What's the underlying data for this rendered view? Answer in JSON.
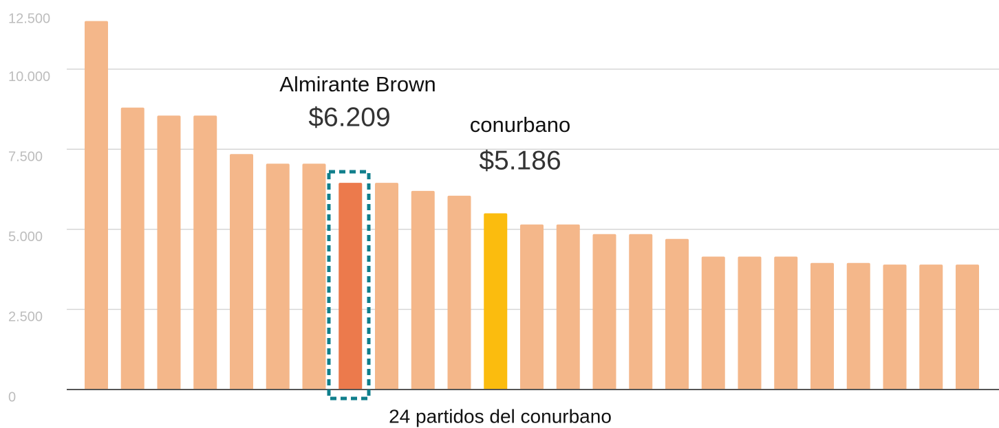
{
  "chart_data": {
    "type": "bar",
    "categories": [
      null,
      null,
      null,
      null,
      null,
      null,
      null,
      null,
      null,
      null,
      null,
      null,
      null,
      null,
      null,
      null,
      null,
      null,
      null,
      null,
      null,
      null,
      null,
      null,
      null
    ],
    "values": [
      11500,
      8800,
      8550,
      8550,
      7350,
      7050,
      7050,
      6450,
      6450,
      6200,
      6050,
      5500,
      5150,
      5150,
      4850,
      4850,
      4700,
      4150,
      4150,
      4150,
      3950,
      3950,
      3900,
      3900,
      3900
    ],
    "colors": [
      "#f4b78a",
      "#f4b78a",
      "#f4b78a",
      "#f4b78a",
      "#f4b78a",
      "#f4b78a",
      "#f4b78a",
      "#ec7a4c",
      "#f4b78a",
      "#f4b78a",
      "#f4b78a",
      "#fbbc0e",
      "#f4b78a",
      "#f4b78a",
      "#f4b78a",
      "#f4b78a",
      "#f4b78a",
      "#f4b78a",
      "#f4b78a",
      "#f4b78a",
      "#f4b78a",
      "#f4b78a",
      "#f4b78a",
      "#f4b78a",
      "#f4b78a"
    ],
    "ylim": [
      0,
      12500
    ],
    "yticks": [
      0,
      {
        "value": 2500,
        "label": "2.500"
      },
      {
        "value": 5000,
        "label": "5.000"
      },
      {
        "value": 7500,
        "label": "7.500"
      },
      {
        "value": 10000,
        "label": "10.000"
      },
      {
        "value": 12500,
        "label": "12.500"
      }
    ],
    "grid": true,
    "x_label": "24 partidos del conurbano",
    "annotations": [
      {
        "text": "Almirante Brown",
        "value_label": "$6.209"
      },
      {
        "text": "conurbano",
        "value_label": "$5.186"
      }
    ]
  }
}
